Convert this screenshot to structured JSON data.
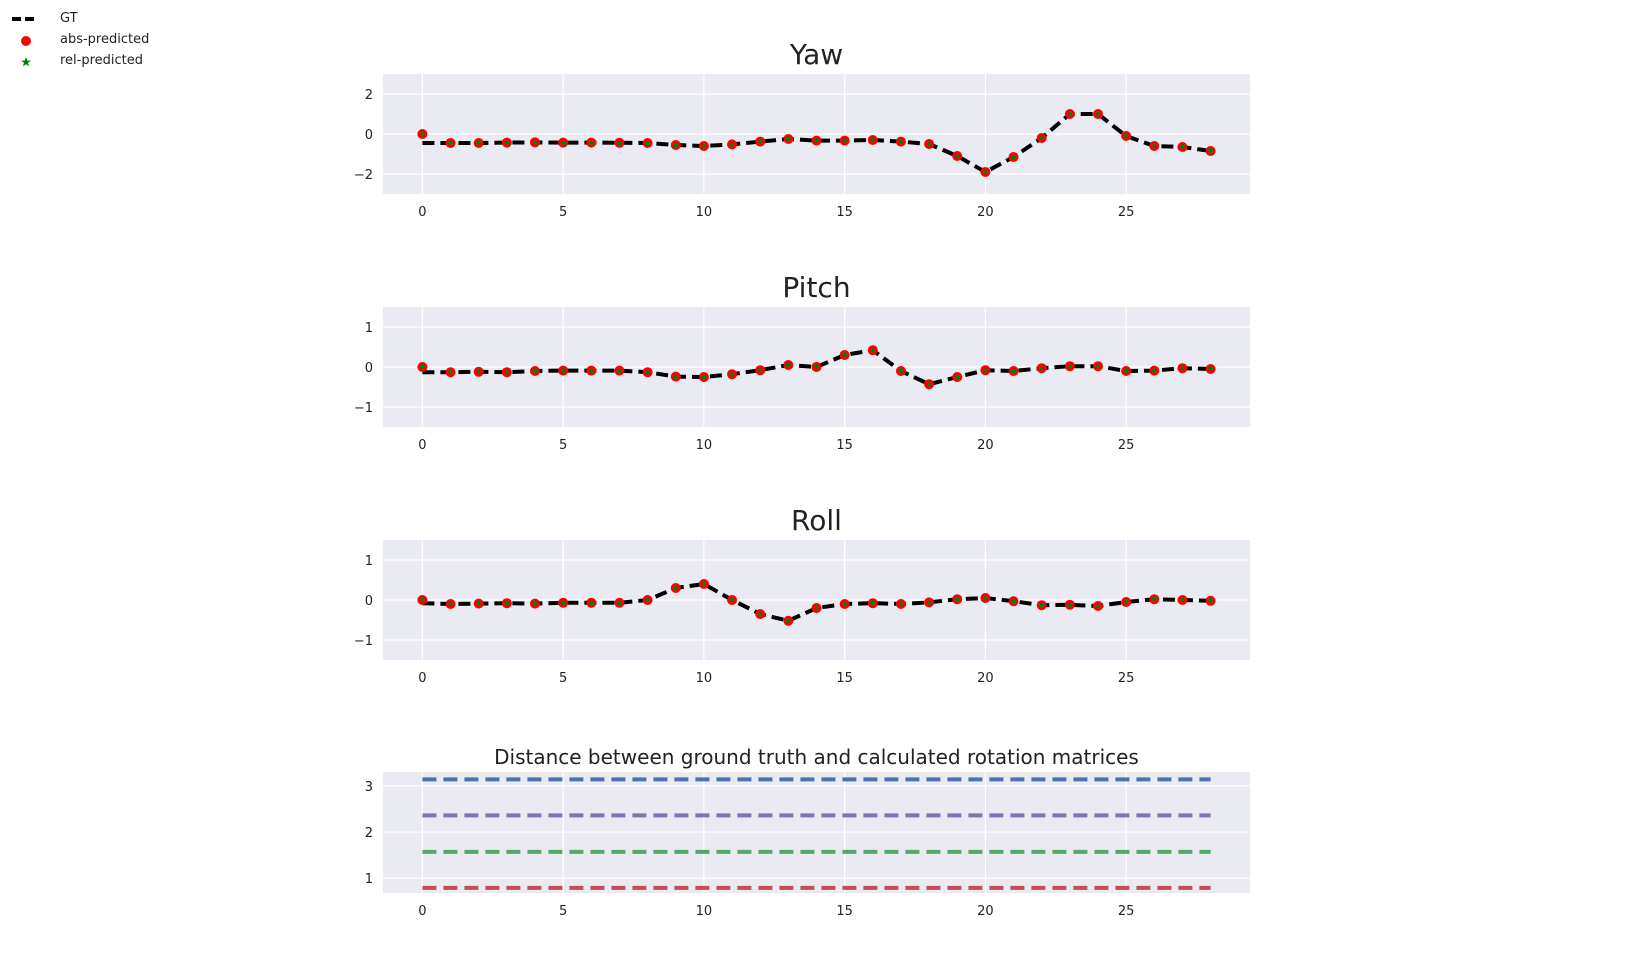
{
  "legend": {
    "entries": [
      {
        "label": "GT",
        "marker": "dashed-line",
        "color": "#000000"
      },
      {
        "label": "abs-predicted",
        "marker": "circle",
        "color": "#ff0000"
      },
      {
        "label": "rel-predicted",
        "marker": "star",
        "color": "#008000"
      }
    ],
    "placement": "top-left"
  },
  "chart_data": [
    {
      "type": "line",
      "title": "Yaw",
      "xlabel": "",
      "ylabel": "",
      "xlim": [
        -1.4,
        29.4
      ],
      "ylim": [
        -3.0,
        3.0
      ],
      "xticks": [
        0,
        5,
        10,
        15,
        20,
        25
      ],
      "yticks": [
        2,
        0,
        -2
      ],
      "ytick_labels": [
        "2",
        "0",
        "−2"
      ],
      "grid": true,
      "x": [
        0,
        1,
        2,
        3,
        4,
        5,
        6,
        7,
        8,
        9,
        10,
        11,
        12,
        13,
        14,
        15,
        16,
        17,
        18,
        19,
        20,
        21,
        22,
        23,
        24,
        25,
        26,
        27,
        28
      ],
      "series": [
        {
          "name": "GT",
          "style": "dashed",
          "color": "#000000",
          "values": [
            -0.45,
            -0.45,
            -0.45,
            -0.43,
            -0.42,
            -0.43,
            -0.43,
            -0.44,
            -0.45,
            -0.55,
            -0.6,
            -0.52,
            -0.38,
            -0.25,
            -0.33,
            -0.33,
            -0.3,
            -0.38,
            -0.5,
            -1.1,
            -1.9,
            -1.15,
            -0.2,
            1.0,
            1.0,
            -0.1,
            -0.6,
            -0.65,
            -0.85
          ]
        },
        {
          "name": "abs-predicted",
          "style": "circle",
          "color": "#ff0000",
          "values": [
            0.0,
            -0.45,
            -0.45,
            -0.43,
            -0.42,
            -0.43,
            -0.43,
            -0.44,
            -0.45,
            -0.55,
            -0.6,
            -0.52,
            -0.38,
            -0.25,
            -0.33,
            -0.33,
            -0.3,
            -0.38,
            -0.5,
            -1.1,
            -1.9,
            -1.15,
            -0.2,
            1.0,
            1.0,
            -0.1,
            -0.6,
            -0.65,
            -0.85
          ]
        },
        {
          "name": "rel-predicted",
          "style": "star",
          "color": "#008000",
          "values": [
            0.0,
            -0.45,
            -0.45,
            -0.43,
            -0.42,
            -0.43,
            -0.43,
            -0.44,
            -0.45,
            -0.55,
            -0.6,
            -0.52,
            -0.38,
            -0.25,
            -0.33,
            -0.33,
            -0.3,
            -0.38,
            -0.5,
            -1.1,
            -1.9,
            -1.15,
            -0.2,
            1.0,
            1.0,
            -0.1,
            -0.6,
            -0.65,
            -0.85
          ]
        }
      ]
    },
    {
      "type": "line",
      "title": "Pitch",
      "xlabel": "",
      "ylabel": "",
      "xlim": [
        -1.4,
        29.4
      ],
      "ylim": [
        -1.5,
        1.5
      ],
      "xticks": [
        0,
        5,
        10,
        15,
        20,
        25
      ],
      "yticks": [
        1,
        0,
        -1
      ],
      "ytick_labels": [
        "1",
        "0",
        "−1"
      ],
      "grid": true,
      "x": [
        0,
        1,
        2,
        3,
        4,
        5,
        6,
        7,
        8,
        9,
        10,
        11,
        12,
        13,
        14,
        15,
        16,
        17,
        18,
        19,
        20,
        21,
        22,
        23,
        24,
        25,
        26,
        27,
        28
      ],
      "series": [
        {
          "name": "GT",
          "style": "dashed",
          "color": "#000000",
          "values": [
            -0.13,
            -0.13,
            -0.12,
            -0.13,
            -0.1,
            -0.09,
            -0.09,
            -0.09,
            -0.13,
            -0.24,
            -0.25,
            -0.18,
            -0.08,
            0.05,
            0.0,
            0.3,
            0.42,
            -0.1,
            -0.43,
            -0.25,
            -0.08,
            -0.1,
            -0.03,
            0.02,
            0.02,
            -0.1,
            -0.09,
            -0.03,
            -0.05
          ]
        },
        {
          "name": "abs-predicted",
          "style": "circle",
          "color": "#ff0000",
          "values": [
            0.0,
            -0.13,
            -0.12,
            -0.13,
            -0.1,
            -0.09,
            -0.09,
            -0.09,
            -0.13,
            -0.24,
            -0.25,
            -0.18,
            -0.08,
            0.05,
            0.0,
            0.3,
            0.42,
            -0.1,
            -0.43,
            -0.25,
            -0.08,
            -0.1,
            -0.03,
            0.02,
            0.02,
            -0.1,
            -0.09,
            -0.03,
            -0.05
          ]
        },
        {
          "name": "rel-predicted",
          "style": "star",
          "color": "#008000",
          "values": [
            0.0,
            -0.13,
            -0.12,
            -0.13,
            -0.1,
            -0.09,
            -0.09,
            -0.09,
            -0.13,
            -0.24,
            -0.25,
            -0.18,
            -0.08,
            0.05,
            0.0,
            0.3,
            0.42,
            -0.1,
            -0.43,
            -0.25,
            -0.08,
            -0.1,
            -0.03,
            0.02,
            0.02,
            -0.1,
            -0.09,
            -0.03,
            -0.05
          ]
        }
      ]
    },
    {
      "type": "line",
      "title": "Roll",
      "xlabel": "",
      "ylabel": "",
      "xlim": [
        -1.4,
        29.4
      ],
      "ylim": [
        -1.5,
        1.5
      ],
      "xticks": [
        0,
        5,
        10,
        15,
        20,
        25
      ],
      "yticks": [
        1,
        0,
        -1
      ],
      "ytick_labels": [
        "1",
        "0",
        "−1"
      ],
      "grid": true,
      "x": [
        0,
        1,
        2,
        3,
        4,
        5,
        6,
        7,
        8,
        9,
        10,
        11,
        12,
        13,
        14,
        15,
        16,
        17,
        18,
        19,
        20,
        21,
        22,
        23,
        24,
        25,
        26,
        27,
        28
      ],
      "series": [
        {
          "name": "GT",
          "style": "dashed",
          "color": "#000000",
          "values": [
            -0.08,
            -0.1,
            -0.09,
            -0.08,
            -0.09,
            -0.07,
            -0.07,
            -0.07,
            0.0,
            0.3,
            0.4,
            0.0,
            -0.35,
            -0.52,
            -0.2,
            -0.1,
            -0.08,
            -0.1,
            -0.06,
            0.02,
            0.05,
            -0.03,
            -0.13,
            -0.12,
            -0.15,
            -0.05,
            0.02,
            0.0,
            -0.02
          ]
        },
        {
          "name": "abs-predicted",
          "style": "circle",
          "color": "#ff0000",
          "values": [
            0.0,
            -0.1,
            -0.09,
            -0.08,
            -0.09,
            -0.07,
            -0.07,
            -0.07,
            0.0,
            0.3,
            0.4,
            0.0,
            -0.35,
            -0.52,
            -0.2,
            -0.1,
            -0.08,
            -0.1,
            -0.06,
            0.02,
            0.05,
            -0.03,
            -0.13,
            -0.12,
            -0.15,
            -0.05,
            0.02,
            0.0,
            -0.02
          ]
        },
        {
          "name": "rel-predicted",
          "style": "star",
          "color": "#008000",
          "values": [
            0.0,
            -0.1,
            -0.09,
            -0.08,
            -0.09,
            -0.07,
            -0.07,
            -0.07,
            0.0,
            0.3,
            0.4,
            0.0,
            -0.35,
            -0.52,
            -0.2,
            -0.1,
            -0.08,
            -0.1,
            -0.06,
            0.02,
            0.05,
            -0.03,
            -0.13,
            -0.12,
            -0.15,
            -0.05,
            0.02,
            0.0,
            -0.02
          ]
        }
      ]
    },
    {
      "type": "line",
      "title": "Distance between ground truth and calculated rotation matrices",
      "xlabel": "",
      "ylabel": "",
      "xlim": [
        -1.4,
        29.4
      ],
      "ylim": [
        0.68,
        3.3
      ],
      "xticks": [
        0,
        5,
        10,
        15,
        20,
        25
      ],
      "yticks": [
        3,
        2,
        1
      ],
      "ytick_labels": [
        "3",
        "2",
        "1"
      ],
      "grid": true,
      "x": [
        0,
        28
      ],
      "series": [
        {
          "style": "dashed",
          "color": "#4c72b0",
          "values": [
            3.14,
            3.14
          ]
        },
        {
          "style": "dashed",
          "color": "#8172b2",
          "values": [
            2.36,
            2.36
          ]
        },
        {
          "style": "dashed",
          "color": "#55a868",
          "values": [
            1.57,
            1.57
          ]
        },
        {
          "style": "dashed",
          "color": "#c44e52",
          "values": [
            0.79,
            0.79
          ]
        }
      ]
    }
  ]
}
